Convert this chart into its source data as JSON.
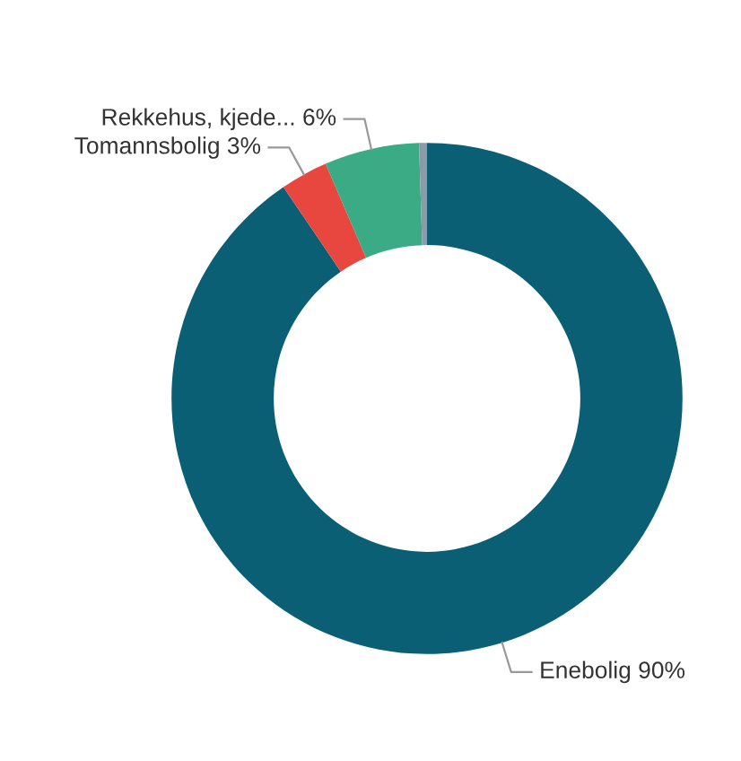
{
  "chart_data": {
    "type": "donut",
    "categories": [
      "Enebolig",
      "Tomannsbolig",
      "Rekkehus, kjede...",
      null
    ],
    "values": [
      90.5,
      3,
      6,
      0.5
    ],
    "value_labels": [
      "90%",
      "3%",
      "6%",
      null
    ],
    "colors": [
      "#0a5f75",
      "#e8473f",
      "#3aab84",
      "#8a9aa8"
    ],
    "legend": false
  }
}
